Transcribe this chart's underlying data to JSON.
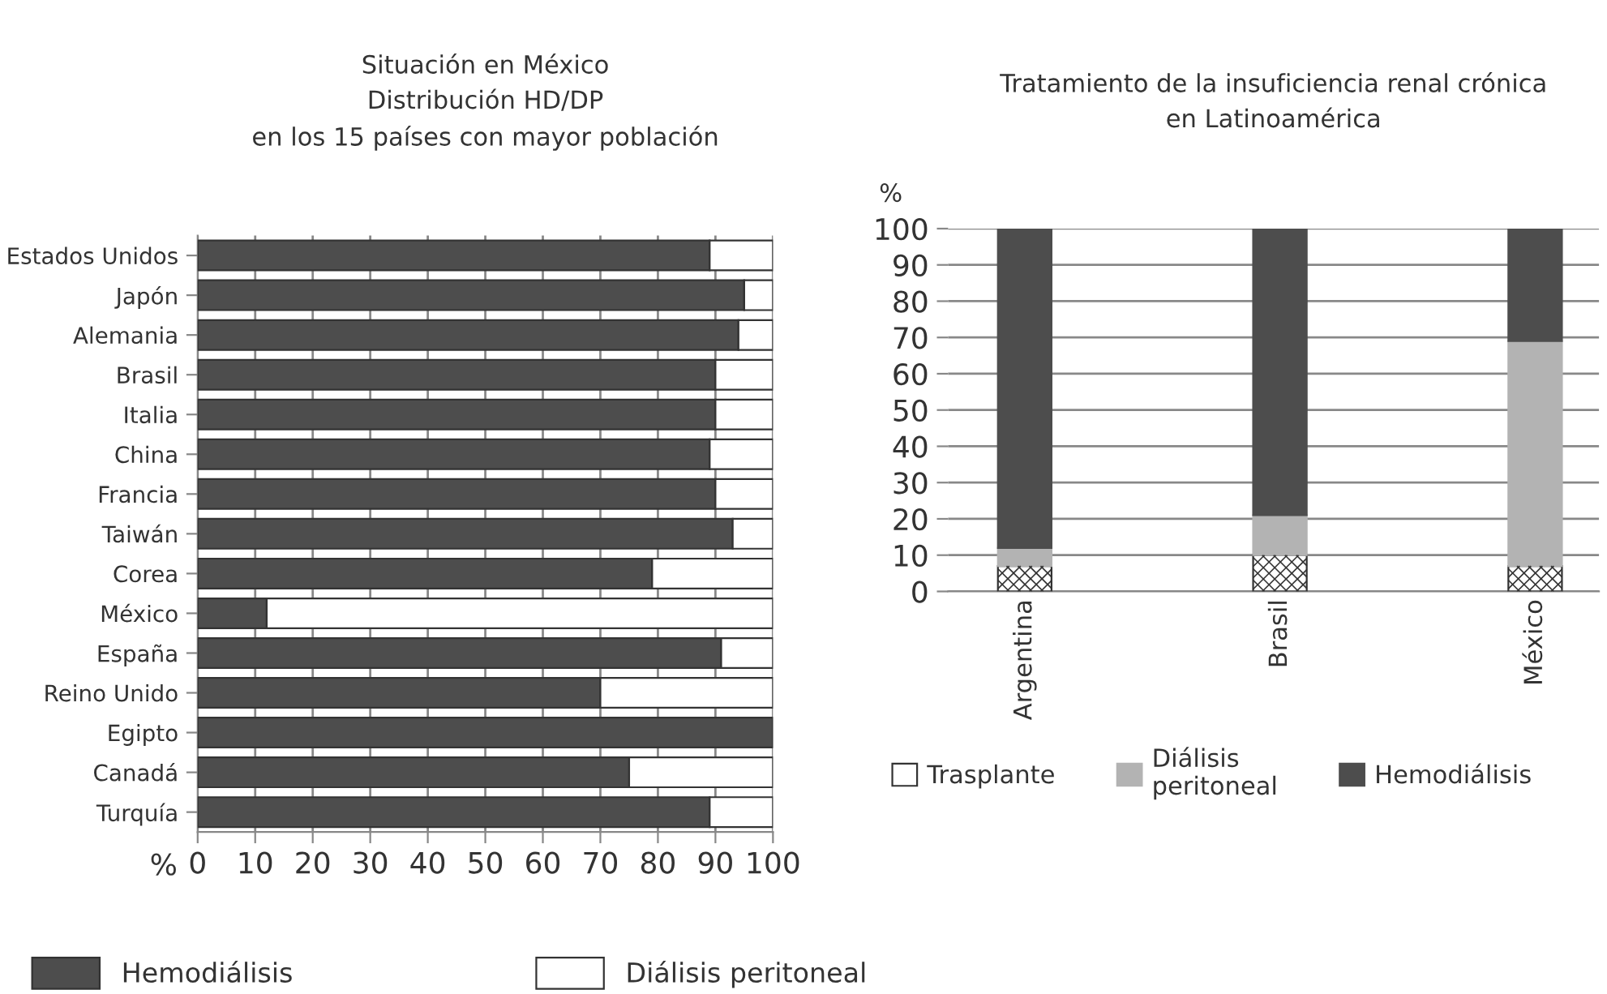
{
  "chart_data": [
    {
      "type": "bar",
      "orientation": "horizontal",
      "stacked": true,
      "title": "Situación en México\nDistribución HD/DP\nen los 15 países con mayor población",
      "xlabel": "%",
      "categories": [
        "Estados Unidos",
        "Japón",
        "Alemania",
        "Brasil",
        "Italia",
        "China",
        "Francia",
        "Taiwán",
        "Corea",
        "México",
        "España",
        "Reino Unido",
        "Egipto",
        "Canadá",
        "Turquía"
      ],
      "series": [
        {
          "name": "Hemodiálisis",
          "color": "#4d4d4d",
          "values": [
            89,
            95,
            94,
            90,
            90,
            89,
            90,
            93,
            79,
            12,
            91,
            70,
            100,
            75,
            89
          ]
        },
        {
          "name": "Diálisis peritoneal",
          "color": "#ffffff",
          "values": [
            11,
            5,
            6,
            10,
            10,
            11,
            10,
            7,
            21,
            88,
            9,
            30,
            0,
            25,
            11
          ]
        }
      ],
      "xlim": [
        0,
        100
      ],
      "xticks": [
        0,
        10,
        20,
        30,
        40,
        50,
        60,
        70,
        80,
        90,
        100
      ],
      "grid": "x",
      "legend": "bottom"
    },
    {
      "type": "bar",
      "stacked": true,
      "title": "Tratamiento de la insuficiencia renal crónica\nen Latinoamérica",
      "ylabel": "%",
      "categories": [
        "Argentina",
        "Brasil",
        "México"
      ],
      "series": [
        {
          "name": "Trasplante",
          "color": "#ffffff",
          "values": [
            7,
            10,
            7
          ]
        },
        {
          "name": "Diálisis\nperitoneal",
          "color": "#b3b3b3",
          "values": [
            5,
            11,
            62
          ]
        },
        {
          "name": "Hemodiálisis",
          "color": "#4d4d4d",
          "values": [
            88,
            79,
            31
          ]
        }
      ],
      "ylim": [
        0,
        100
      ],
      "yticks": [
        0,
        10,
        20,
        30,
        40,
        50,
        60,
        70,
        80,
        90,
        100
      ],
      "grid": "y",
      "legend": "bottom"
    }
  ]
}
